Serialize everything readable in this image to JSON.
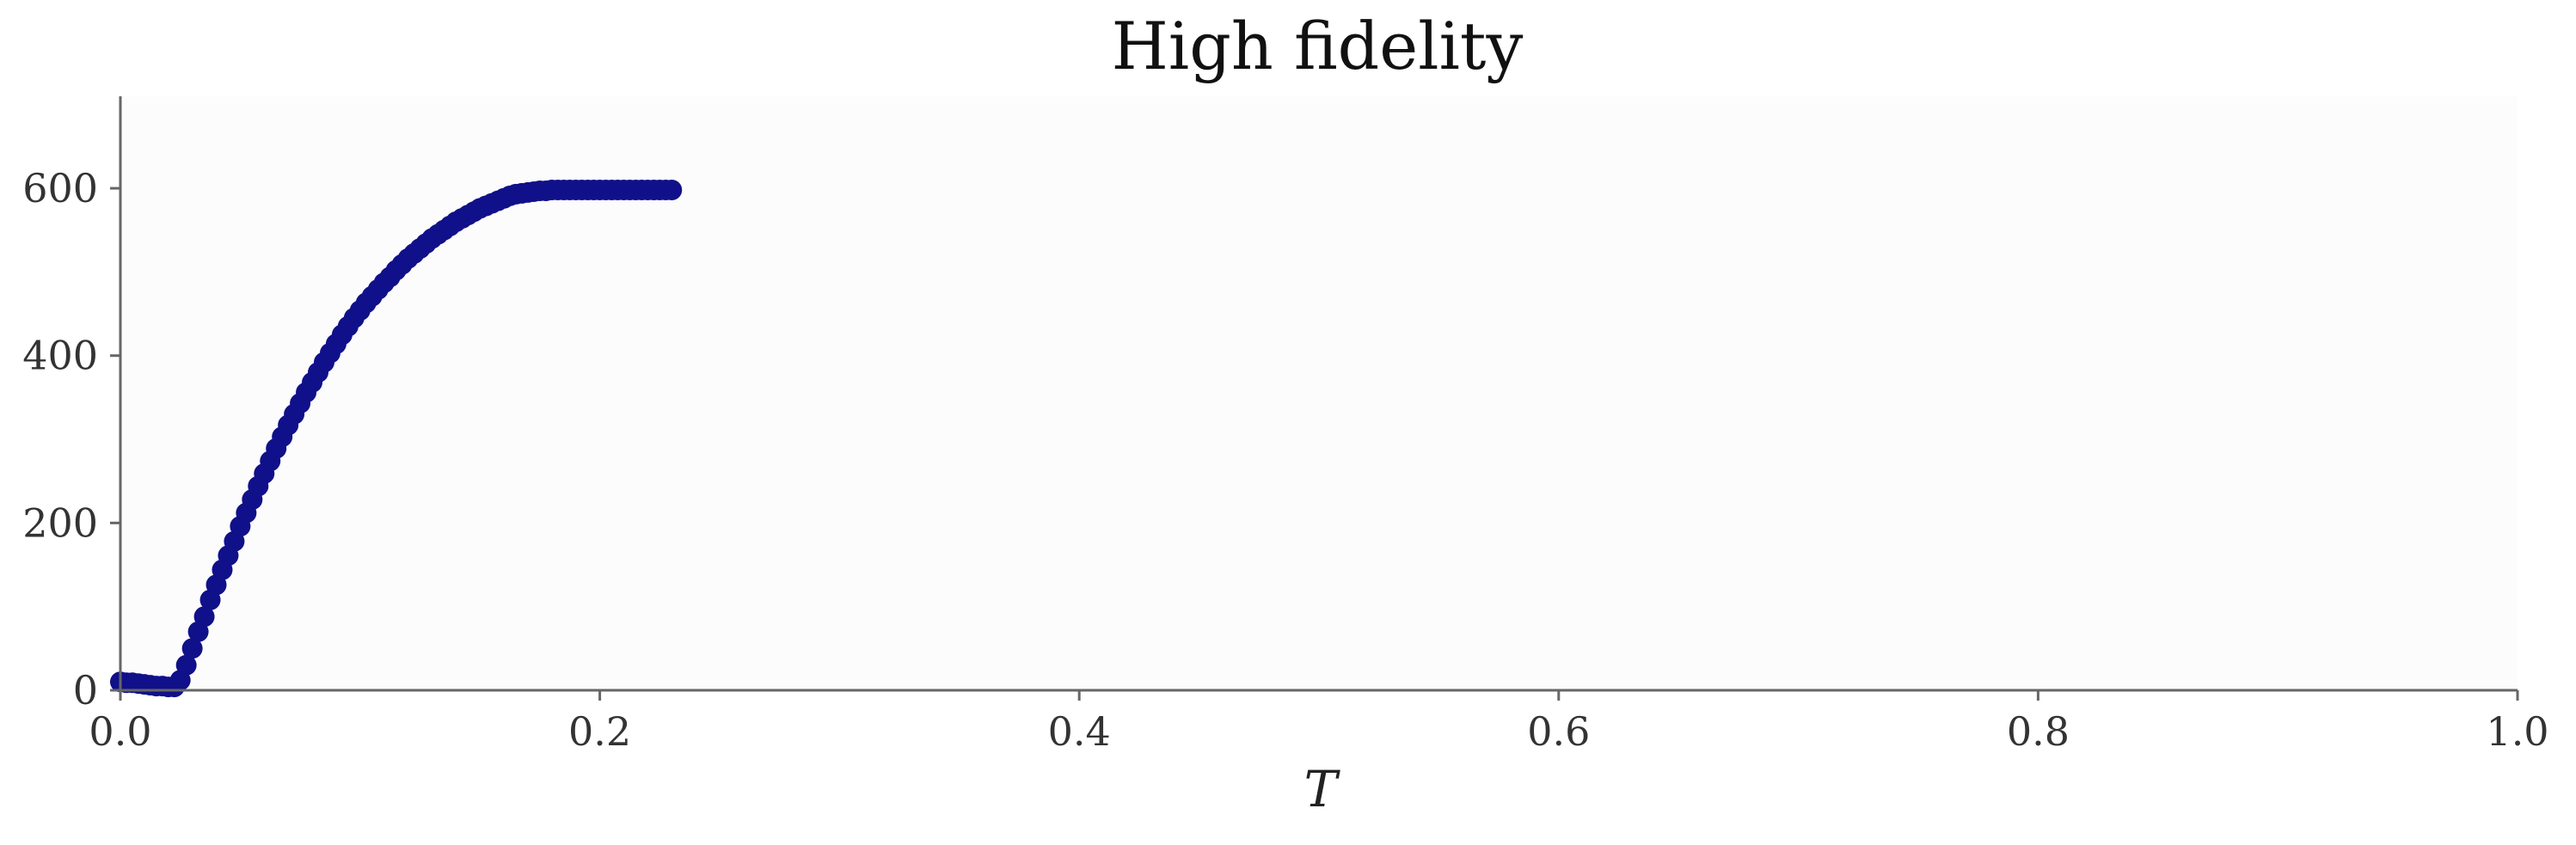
{
  "chart_data": {
    "type": "scatter",
    "title": "High fidelity",
    "xlabel": "T",
    "ylabel": "",
    "xlim": [
      0.0,
      1.0
    ],
    "ylim": [
      0,
      710
    ],
    "grid": false,
    "legend": "none",
    "xticks": [
      "0.0",
      "0.2",
      "0.4",
      "0.6",
      "0.8",
      "1.0"
    ],
    "xtick_values": [
      0.0,
      0.2,
      0.4,
      0.6,
      0.8,
      1.0
    ],
    "yticks": [
      "0",
      "200",
      "400",
      "600"
    ],
    "ytick_values": [
      0,
      200,
      400,
      600
    ],
    "colors": {
      "marker": "#10108a",
      "axes": "#666666",
      "plot_bg": "#fcfcfc"
    },
    "series": [
      {
        "x": [
          0.0,
          0.0025,
          0.005,
          0.0075,
          0.01,
          0.0125,
          0.015,
          0.0175,
          0.02,
          0.0225,
          0.025,
          0.0275,
          0.03,
          0.0325,
          0.035,
          0.0375,
          0.04,
          0.0425,
          0.045,
          0.0475,
          0.05,
          0.0525,
          0.055,
          0.0575,
          0.06,
          0.0625,
          0.065,
          0.0675,
          0.07,
          0.0725,
          0.075,
          0.0775,
          0.08,
          0.0825,
          0.085,
          0.0875,
          0.09,
          0.0925,
          0.095,
          0.0975,
          0.1,
          0.1025,
          0.105,
          0.1075,
          0.11,
          0.1125,
          0.115,
          0.1175,
          0.12,
          0.1225,
          0.125,
          0.1275,
          0.13,
          0.1325,
          0.135,
          0.1375,
          0.14,
          0.1425,
          0.145,
          0.1475,
          0.15,
          0.1525,
          0.155,
          0.1575,
          0.16,
          0.1625,
          0.165,
          0.1675,
          0.17,
          0.1725,
          0.175,
          0.1775,
          0.18,
          0.1825,
          0.185,
          0.1875,
          0.19,
          0.1925,
          0.195,
          0.1975,
          0.2,
          0.2025,
          0.205,
          0.2075,
          0.21,
          0.2125,
          0.215,
          0.2175,
          0.22,
          0.2225,
          0.225,
          0.2275,
          0.23
        ],
        "y": [
          10,
          9,
          9,
          8,
          7,
          6,
          5,
          5,
          4,
          4,
          12,
          30,
          50,
          70,
          88,
          108,
          126,
          144,
          161,
          178,
          196,
          212,
          228,
          244,
          259,
          274,
          289,
          303,
          317,
          330,
          343,
          356,
          368,
          380,
          392,
          403,
          414,
          425,
          435,
          445,
          454,
          463,
          471,
          479,
          487,
          494,
          502,
          509,
          516,
          522,
          528,
          534,
          540,
          545,
          550,
          555,
          560,
          564,
          568,
          572,
          576,
          579,
          582,
          585,
          588,
          591,
          593,
          594,
          595,
          596,
          597,
          597,
          598,
          598,
          598,
          598,
          598,
          598,
          598,
          598,
          598,
          598,
          598,
          598,
          598,
          598,
          598,
          598,
          598,
          598,
          598,
          598,
          598
        ]
      }
    ]
  }
}
